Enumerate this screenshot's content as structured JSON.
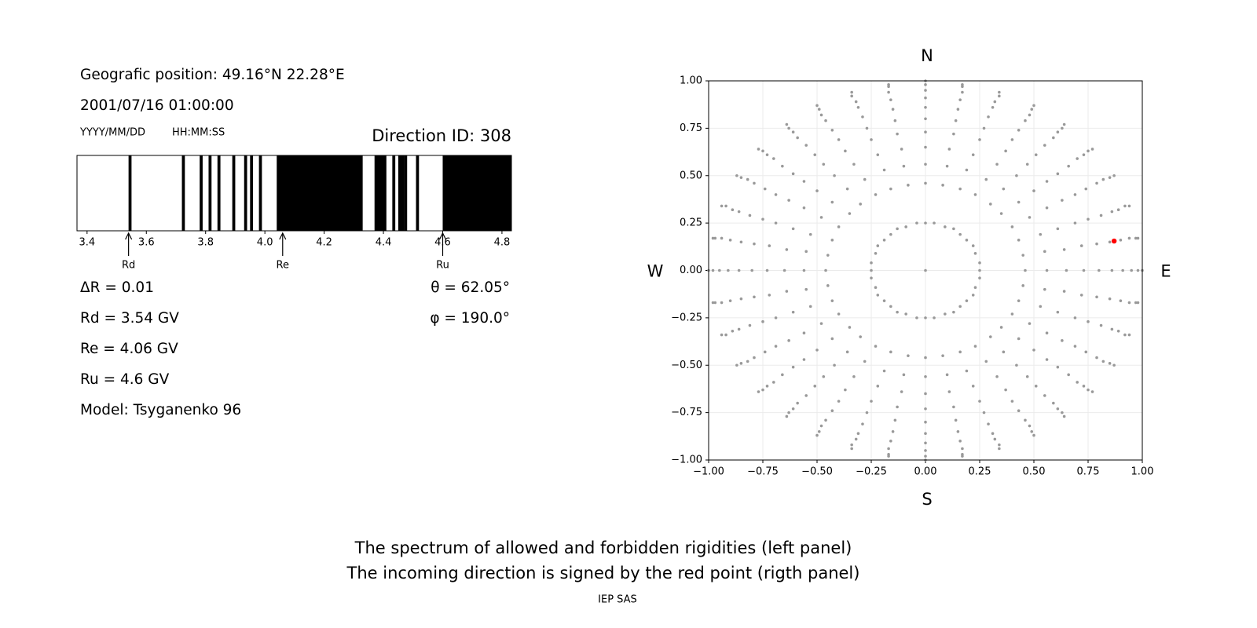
{
  "header": {
    "position": "Geografic position: 49.16°N 22.28°E",
    "datetime": "2001/07/16 01:00:00",
    "date_format": "YYYY/MM/DD",
    "time_format": "HH:MM:SS",
    "direction_id": "Direction ID: 308"
  },
  "parameters": {
    "delta_r": "ΔR = 0.01",
    "rd": "Rd = 3.54 GV",
    "re": "Re = 4.06 GV",
    "ru": "Ru = 4.6 GV",
    "model": "Model: Tsyganenko 96",
    "theta": "θ = 62.05°",
    "phi": "φ = 190.0°"
  },
  "caption": [
    "The spectrum of allowed and forbidden rigidities (left panel)",
    "The incoming direction is signed by the red point (rigth panel)"
  ],
  "credit": "IEP SAS",
  "chart_data": [
    {
      "type": "spectrum",
      "xlim": [
        3.366,
        4.832
      ],
      "xticks": [
        3.4,
        3.6,
        3.8,
        {
          "value": 4,
          "label": "4.0"
        },
        4.2,
        4.4,
        4.6,
        4.8
      ],
      "color": "#000000",
      "forbidden": [
        [
          3.54,
          3.55
        ],
        [
          3.72,
          3.73
        ],
        [
          3.78,
          3.79
        ],
        [
          3.81,
          3.82
        ],
        [
          3.84,
          3.85
        ],
        [
          3.89,
          3.9
        ],
        [
          3.93,
          3.94
        ],
        [
          3.95,
          3.96
        ],
        [
          3.98,
          3.99
        ],
        [
          4.04,
          4.33
        ],
        [
          4.37,
          4.41
        ],
        [
          4.43,
          4.44
        ],
        [
          4.45,
          4.47
        ],
        [
          4.47,
          4.48
        ],
        [
          4.51,
          4.52
        ],
        [
          4.6,
          4.832
        ]
      ],
      "annotations": [
        {
          "label": "Rd",
          "value": 3.54
        },
        {
          "label": "Re",
          "value": 4.06
        },
        {
          "label": "Ru",
          "value": 4.6
        }
      ]
    },
    {
      "type": "scatter",
      "xlim": [
        -1,
        1
      ],
      "ylim": [
        -1,
        1
      ],
      "grid": true,
      "xticks": [
        {
          "value": -1,
          "label": "−1.00"
        },
        {
          "value": -0.75,
          "label": "−0.75"
        },
        {
          "value": -0.5,
          "label": "−0.50"
        },
        {
          "value": -0.25,
          "label": "−0.25"
        },
        {
          "value": 0,
          "label": "0.00"
        },
        0.25,
        {
          "value": 0.5,
          "label": "0.50"
        },
        0.75,
        {
          "value": 1,
          "label": "1.00"
        }
      ],
      "yticks": [
        {
          "value": -1,
          "label": "−1.00"
        },
        {
          "value": -0.75,
          "label": "−0.75"
        },
        {
          "value": -0.5,
          "label": "−0.50"
        },
        {
          "value": -0.25,
          "label": "−0.25"
        },
        {
          "value": 0,
          "label": "0.00"
        },
        0.25,
        {
          "value": 0.5,
          "label": "0.50"
        },
        0.75,
        {
          "value": 1,
          "label": "1.00"
        }
      ],
      "compass": {
        "north": "N",
        "south": "S",
        "west": "W",
        "east": "E"
      },
      "series": [
        {
          "color": "#999999",
          "x": [
            1,
            0.98,
            0.95,
            0.91,
            0.86,
            0.8,
            0.73,
            0.65,
            0.56,
            0.46,
            0.25,
            0.98,
            0.97,
            0.94,
            0.9,
            0.85,
            0.79,
            0.72,
            0.64,
            0.55,
            0.45,
            0.25,
            0.94,
            0.92,
            0.89,
            0.86,
            0.81,
            0.75,
            0.69,
            0.61,
            0.53,
            0.43,
            0.23,
            0.87,
            0.85,
            0.82,
            0.79,
            0.74,
            0.69,
            0.63,
            0.56,
            0.48,
            0.4,
            0.22,
            0.77,
            0.75,
            0.73,
            0.7,
            0.66,
            0.61,
            0.56,
            0.5,
            0.43,
            0.35,
            0.19,
            0.64,
            0.63,
            0.61,
            0.59,
            0.55,
            0.51,
            0.47,
            0.42,
            0.36,
            0.3,
            0.16,
            0.5,
            0.49,
            0.48,
            0.46,
            0.43,
            0.4,
            0.37,
            0.33,
            0.28,
            0.23,
            0.13,
            0.34,
            0.34,
            0.32,
            0.31,
            0.29,
            0.27,
            0.25,
            0.22,
            0.19,
            0.16,
            0.09,
            0.17,
            0.17,
            0.17,
            0.16,
            0.15,
            0.14,
            0.13,
            0.11,
            0.1,
            0.08,
            0.04,
            0,
            0,
            0,
            0,
            0,
            0,
            0,
            0,
            0,
            0,
            0,
            -0.17,
            -0.17,
            -0.17,
            -0.16,
            -0.15,
            -0.14,
            -0.13,
            -0.11,
            -0.1,
            -0.08,
            -0.04,
            -0.34,
            -0.34,
            -0.32,
            -0.31,
            -0.29,
            -0.27,
            -0.25,
            -0.22,
            -0.19,
            -0.16,
            -0.09,
            -0.5,
            -0.49,
            -0.48,
            -0.46,
            -0.43,
            -0.4,
            -0.37,
            -0.33,
            -0.28,
            -0.23,
            -0.13,
            -0.64,
            -0.63,
            -0.61,
            -0.59,
            -0.55,
            -0.51,
            -0.47,
            -0.42,
            -0.36,
            -0.3,
            -0.16,
            -0.77,
            -0.75,
            -0.73,
            -0.7,
            -0.66,
            -0.61,
            -0.56,
            -0.5,
            -0.43,
            -0.35,
            -0.19,
            -0.87,
            -0.85,
            -0.82,
            -0.79,
            -0.74,
            -0.69,
            -0.63,
            -0.56,
            -0.48,
            -0.4,
            -0.22,
            -0.94,
            -0.92,
            -0.89,
            -0.86,
            -0.81,
            -0.75,
            -0.69,
            -0.61,
            -0.53,
            -0.43,
            -0.23,
            -0.98,
            -0.97,
            -0.94,
            -0.9,
            -0.85,
            -0.79,
            -0.72,
            -0.64,
            -0.55,
            -0.45,
            -0.25,
            -1,
            -0.98,
            -0.95,
            -0.91,
            -0.86,
            -0.8,
            -0.73,
            -0.65,
            -0.56,
            -0.46,
            -0.25,
            -0.98,
            -0.97,
            -0.94,
            -0.9,
            -0.85,
            -0.79,
            -0.72,
            -0.64,
            -0.55,
            -0.45,
            -0.25,
            -0.94,
            -0.92,
            -0.89,
            -0.86,
            -0.81,
            -0.75,
            -0.69,
            -0.61,
            -0.53,
            -0.43,
            -0.23,
            -0.87,
            -0.85,
            -0.82,
            -0.79,
            -0.74,
            -0.69,
            -0.63,
            -0.56,
            -0.48,
            -0.4,
            -0.22,
            -0.77,
            -0.75,
            -0.73,
            -0.7,
            -0.66,
            -0.61,
            -0.56,
            -0.5,
            -0.43,
            -0.35,
            -0.19,
            -0.64,
            -0.63,
            -0.61,
            -0.59,
            -0.55,
            -0.51,
            -0.47,
            -0.42,
            -0.36,
            -0.3,
            -0.16,
            -0.5,
            -0.49,
            -0.48,
            -0.46,
            -0.43,
            -0.4,
            -0.37,
            -0.33,
            -0.28,
            -0.23,
            -0.13,
            -0.34,
            -0.34,
            -0.32,
            -0.31,
            -0.29,
            -0.27,
            -0.25,
            -0.22,
            -0.19,
            -0.16,
            -0.09,
            -0.17,
            -0.17,
            -0.17,
            -0.16,
            -0.15,
            -0.14,
            -0.13,
            -0.11,
            -0.1,
            -0.08,
            -0.04,
            0,
            0,
            0,
            0,
            0,
            0,
            0,
            0,
            0,
            0,
            0,
            0.17,
            0.17,
            0.17,
            0.16,
            0.15,
            0.14,
            0.13,
            0.11,
            0.1,
            0.08,
            0.04,
            0.34,
            0.34,
            0.32,
            0.31,
            0.29,
            0.27,
            0.25,
            0.22,
            0.19,
            0.16,
            0.09,
            0.5,
            0.49,
            0.48,
            0.46,
            0.43,
            0.4,
            0.37,
            0.33,
            0.28,
            0.23,
            0.13,
            0.64,
            0.63,
            0.61,
            0.59,
            0.55,
            0.51,
            0.47,
            0.42,
            0.36,
            0.3,
            0.16,
            0.77,
            0.75,
            0.73,
            0.7,
            0.66,
            0.61,
            0.56,
            0.5,
            0.43,
            0.35,
            0.19,
            0.87,
            0.85,
            0.82,
            0.79,
            0.74,
            0.69,
            0.63,
            0.56,
            0.48,
            0.4,
            0.22,
            0.94,
            0.92,
            0.89,
            0.86,
            0.81,
            0.75,
            0.69,
            0.61,
            0.53,
            0.43,
            0.23,
            0.98,
            0.97,
            0.94,
            0.9,
            0.85,
            0.79,
            0.72,
            0.64,
            0.55,
            0.45,
            0.25,
            0
          ],
          "y": [
            0,
            0,
            0,
            0,
            0,
            0,
            0,
            0,
            0,
            0,
            0,
            0.17,
            0.17,
            0.17,
            0.16,
            0.15,
            0.14,
            0.13,
            0.11,
            0.1,
            0.08,
            0.04,
            0.34,
            0.34,
            0.32,
            0.31,
            0.29,
            0.27,
            0.25,
            0.22,
            0.19,
            0.16,
            0.09,
            0.5,
            0.49,
            0.48,
            0.46,
            0.43,
            0.4,
            0.37,
            0.33,
            0.28,
            0.23,
            0.13,
            0.64,
            0.63,
            0.61,
            0.59,
            0.55,
            0.51,
            0.47,
            0.42,
            0.36,
            0.3,
            0.16,
            0.77,
            0.75,
            0.73,
            0.7,
            0.66,
            0.61,
            0.56,
            0.5,
            0.43,
            0.35,
            0.19,
            0.87,
            0.85,
            0.82,
            0.79,
            0.74,
            0.69,
            0.63,
            0.56,
            0.48,
            0.4,
            0.22,
            0.94,
            0.92,
            0.89,
            0.86,
            0.81,
            0.75,
            0.69,
            0.61,
            0.53,
            0.43,
            0.23,
            0.98,
            0.97,
            0.94,
            0.9,
            0.85,
            0.79,
            0.72,
            0.64,
            0.55,
            0.45,
            0.25,
            1,
            0.98,
            0.95,
            0.91,
            0.86,
            0.8,
            0.73,
            0.65,
            0.56,
            0.46,
            0.25,
            0.98,
            0.97,
            0.94,
            0.9,
            0.85,
            0.79,
            0.72,
            0.64,
            0.55,
            0.45,
            0.25,
            0.94,
            0.92,
            0.89,
            0.86,
            0.81,
            0.75,
            0.69,
            0.61,
            0.53,
            0.43,
            0.23,
            0.87,
            0.85,
            0.82,
            0.79,
            0.74,
            0.69,
            0.63,
            0.56,
            0.48,
            0.4,
            0.22,
            0.77,
            0.75,
            0.73,
            0.7,
            0.66,
            0.61,
            0.56,
            0.5,
            0.43,
            0.35,
            0.19,
            0.64,
            0.63,
            0.61,
            0.59,
            0.55,
            0.51,
            0.47,
            0.42,
            0.36,
            0.3,
            0.16,
            0.5,
            0.49,
            0.48,
            0.46,
            0.43,
            0.4,
            0.37,
            0.33,
            0.28,
            0.23,
            0.13,
            0.34,
            0.34,
            0.32,
            0.31,
            0.29,
            0.27,
            0.25,
            0.22,
            0.19,
            0.16,
            0.09,
            0.17,
            0.17,
            0.17,
            0.16,
            0.15,
            0.14,
            0.13,
            0.11,
            0.1,
            0.08,
            0.04,
            0,
            0,
            0,
            0,
            0,
            0,
            0,
            0,
            0,
            0,
            0,
            -0.17,
            -0.17,
            -0.17,
            -0.16,
            -0.15,
            -0.14,
            -0.13,
            -0.11,
            -0.1,
            -0.08,
            -0.04,
            -0.34,
            -0.34,
            -0.32,
            -0.31,
            -0.29,
            -0.27,
            -0.25,
            -0.22,
            -0.19,
            -0.16,
            -0.09,
            -0.5,
            -0.49,
            -0.48,
            -0.46,
            -0.43,
            -0.4,
            -0.37,
            -0.33,
            -0.28,
            -0.23,
            -0.13,
            -0.64,
            -0.63,
            -0.61,
            -0.59,
            -0.55,
            -0.51,
            -0.47,
            -0.42,
            -0.36,
            -0.3,
            -0.16,
            -0.77,
            -0.75,
            -0.73,
            -0.7,
            -0.66,
            -0.61,
            -0.56,
            -0.5,
            -0.43,
            -0.35,
            -0.19,
            -0.87,
            -0.85,
            -0.82,
            -0.79,
            -0.74,
            -0.69,
            -0.63,
            -0.56,
            -0.48,
            -0.4,
            -0.22,
            -0.94,
            -0.92,
            -0.89,
            -0.86,
            -0.81,
            -0.75,
            -0.69,
            -0.61,
            -0.53,
            -0.43,
            -0.23,
            -0.98,
            -0.97,
            -0.94,
            -0.9,
            -0.85,
            -0.79,
            -0.72,
            -0.64,
            -0.55,
            -0.45,
            -0.25,
            -1,
            -0.98,
            -0.95,
            -0.91,
            -0.86,
            -0.8,
            -0.73,
            -0.65,
            -0.56,
            -0.46,
            -0.25,
            -0.98,
            -0.97,
            -0.94,
            -0.9,
            -0.85,
            -0.79,
            -0.72,
            -0.64,
            -0.55,
            -0.45,
            -0.25,
            -0.94,
            -0.92,
            -0.89,
            -0.86,
            -0.81,
            -0.75,
            -0.69,
            -0.61,
            -0.53,
            -0.43,
            -0.23,
            -0.87,
            -0.85,
            -0.82,
            -0.79,
            -0.74,
            -0.69,
            -0.63,
            -0.56,
            -0.48,
            -0.4,
            -0.22,
            -0.77,
            -0.75,
            -0.73,
            -0.7,
            -0.66,
            -0.61,
            -0.56,
            -0.5,
            -0.43,
            -0.35,
            -0.19,
            -0.64,
            -0.63,
            -0.61,
            -0.59,
            -0.55,
            -0.51,
            -0.47,
            -0.42,
            -0.36,
            -0.3,
            -0.16,
            -0.5,
            -0.49,
            -0.48,
            -0.46,
            -0.43,
            -0.4,
            -0.37,
            -0.33,
            -0.28,
            -0.23,
            -0.13,
            -0.34,
            -0.34,
            -0.32,
            -0.31,
            -0.29,
            -0.27,
            -0.25,
            -0.22,
            -0.19,
            -0.16,
            -0.09,
            -0.17,
            -0.17,
            -0.17,
            -0.16,
            -0.15,
            -0.14,
            -0.13,
            -0.11,
            -0.1,
            -0.08,
            -0.04,
            0
          ]
        },
        {
          "color": "#ff0000",
          "x": [
            0.87
          ],
          "y": [
            0.155
          ]
        }
      ]
    }
  ]
}
